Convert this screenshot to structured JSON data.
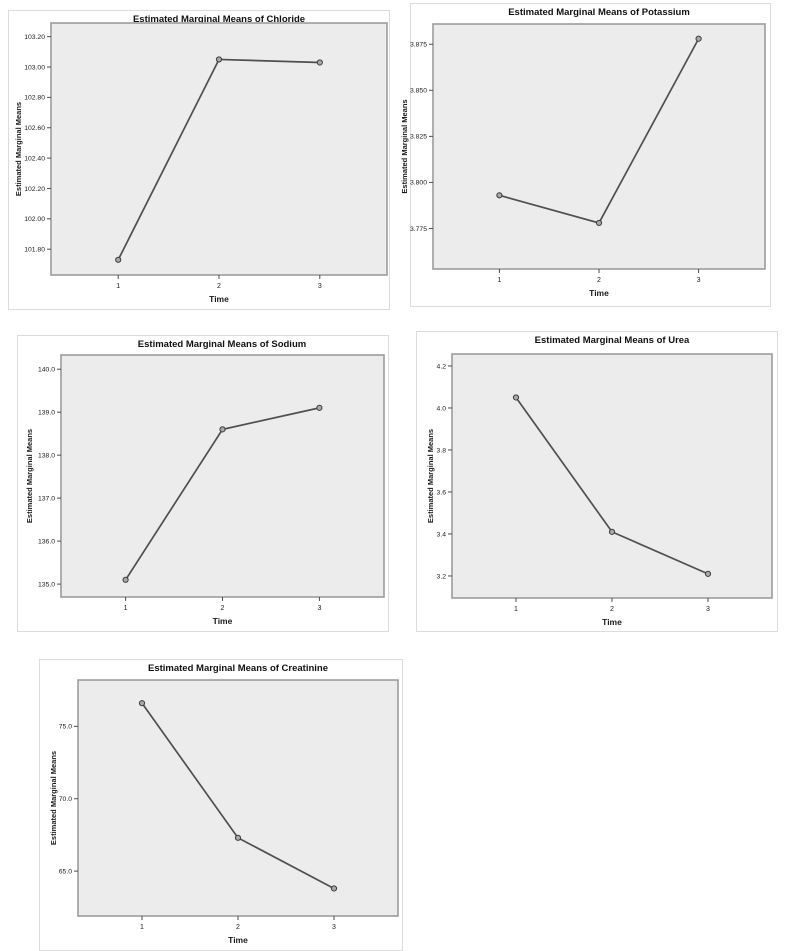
{
  "colors": {
    "plot_fill": "#ececec",
    "plot_border": "#9c9c9c",
    "line": "#4f4f4f",
    "marker_fill": "#a8a8a8",
    "marker_stroke": "#3c3c3c",
    "panel_border": "#dcdcdc",
    "tick": "#4d4d4d",
    "text": "#1a1a1a"
  },
  "chart_data": [
    {
      "id": "chloride",
      "type": "line",
      "title": "Estimated Marginal Means of Chloride",
      "xlabel": "Time",
      "ylabel": "Estimated Marginal Means",
      "categories": [
        "1",
        "2",
        "3"
      ],
      "values": [
        101.73,
        103.05,
        103.03
      ],
      "ylim": [
        101.63,
        103.29
      ],
      "ytick_values": [
        103.2,
        103.0,
        102.8,
        102.6,
        102.4,
        102.2,
        102.0,
        101.8
      ],
      "ytick_labels": [
        "103.20",
        "103.00",
        "102.80",
        "102.60",
        "102.40",
        "102.20",
        "102.00",
        "101.80"
      ],
      "legend": "none",
      "grid": "off"
    },
    {
      "id": "potassium",
      "type": "line",
      "title": "Estimated Marginal Means of Potassium",
      "xlabel": "Time",
      "ylabel": "Estimated Marginal Means",
      "categories": [
        "1",
        "2",
        "3"
      ],
      "values": [
        3.793,
        3.778,
        3.878
      ],
      "ylim": [
        3.753,
        3.886
      ],
      "ytick_values": [
        3.875,
        3.85,
        3.825,
        3.8,
        3.775
      ],
      "ytick_labels": [
        "3.875",
        "3.850",
        "3.825",
        "3.800",
        "3.775"
      ],
      "legend": "none",
      "grid": "off"
    },
    {
      "id": "sodium",
      "type": "line",
      "title": "Estimated Marginal Means of Sodium",
      "xlabel": "Time",
      "ylabel": "Estimated Marginal Means",
      "categories": [
        "1",
        "2",
        "3"
      ],
      "values": [
        135.1,
        138.6,
        139.1
      ],
      "ylim": [
        134.7,
        140.33
      ],
      "ytick_values": [
        140.0,
        139.0,
        138.0,
        137.0,
        136.0,
        135.0
      ],
      "ytick_labels": [
        "140.0",
        "139.0",
        "138.0",
        "137.0",
        "136.0",
        "135.0"
      ],
      "legend": "none",
      "grid": "off"
    },
    {
      "id": "urea",
      "type": "line",
      "title": "Estimated Marginal Means of Urea",
      "xlabel": "Time",
      "ylabel": "Estimated Marginal Means",
      "categories": [
        "1",
        "2",
        "3"
      ],
      "values": [
        4.05,
        3.41,
        3.21
      ],
      "ylim": [
        3.095,
        4.257
      ],
      "ytick_values": [
        4.2,
        4.0,
        3.8,
        3.6,
        3.4,
        3.2
      ],
      "ytick_labels": [
        "4.2",
        "4.0",
        "3.8",
        "3.6",
        "3.4",
        "3.2"
      ],
      "legend": "none",
      "grid": "off"
    },
    {
      "id": "creatinine",
      "type": "line",
      "title": "Estimated Marginal Means of Creatinine",
      "xlabel": "Time",
      "ylabel": "Estimated Marginal Means",
      "categories": [
        "1",
        "2",
        "3"
      ],
      "values": [
        76.6,
        67.3,
        63.8
      ],
      "ylim": [
        61.9,
        78.2
      ],
      "ytick_values": [
        75.0,
        70.0,
        65.0
      ],
      "ytick_labels": [
        "75.0",
        "70.0",
        "65.0"
      ],
      "legend": "none",
      "grid": "off"
    }
  ]
}
